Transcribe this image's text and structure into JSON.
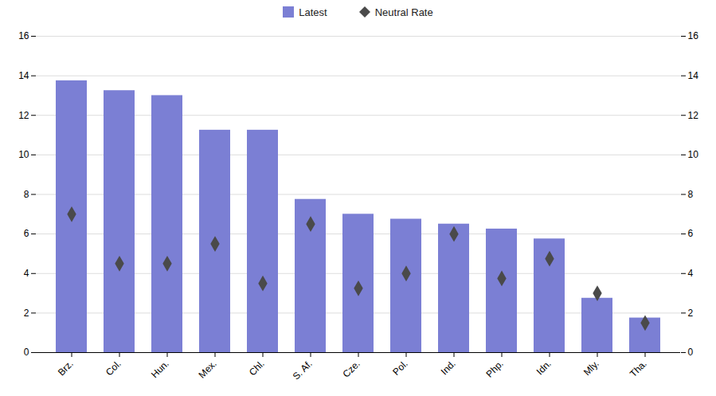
{
  "chart_data": {
    "type": "bar",
    "categories": [
      "Brz.",
      "Col.",
      "Hun.",
      "Mex.",
      "Chl.",
      "S. Af.",
      "Cze.",
      "Pol.",
      "Ind.",
      "Php.",
      "Idn.",
      "Mly.",
      "Tha."
    ],
    "series": [
      {
        "name": "Latest",
        "type": "bar",
        "color": "#7B7FD4",
        "values": [
          13.75,
          13.25,
          13.0,
          11.25,
          11.25,
          7.75,
          7.0,
          6.75,
          6.5,
          6.25,
          5.75,
          2.75,
          1.75
        ]
      },
      {
        "name": "Neutral Rate",
        "type": "scatter",
        "marker": "diamond",
        "color": "#4a4a4a",
        "values": [
          7.0,
          4.5,
          4.5,
          5.5,
          3.5,
          6.5,
          3.25,
          4.0,
          6.0,
          3.75,
          4.75,
          3.0,
          1.5
        ]
      }
    ],
    "ylim": [
      0,
      16
    ],
    "yticks": [
      0,
      2,
      4,
      6,
      8,
      10,
      12,
      14,
      16
    ],
    "y2lim": [
      0,
      16
    ],
    "y2ticks": [
      0,
      2,
      4,
      6,
      8,
      10,
      12,
      14,
      16
    ],
    "grid": true,
    "legend": "top"
  }
}
